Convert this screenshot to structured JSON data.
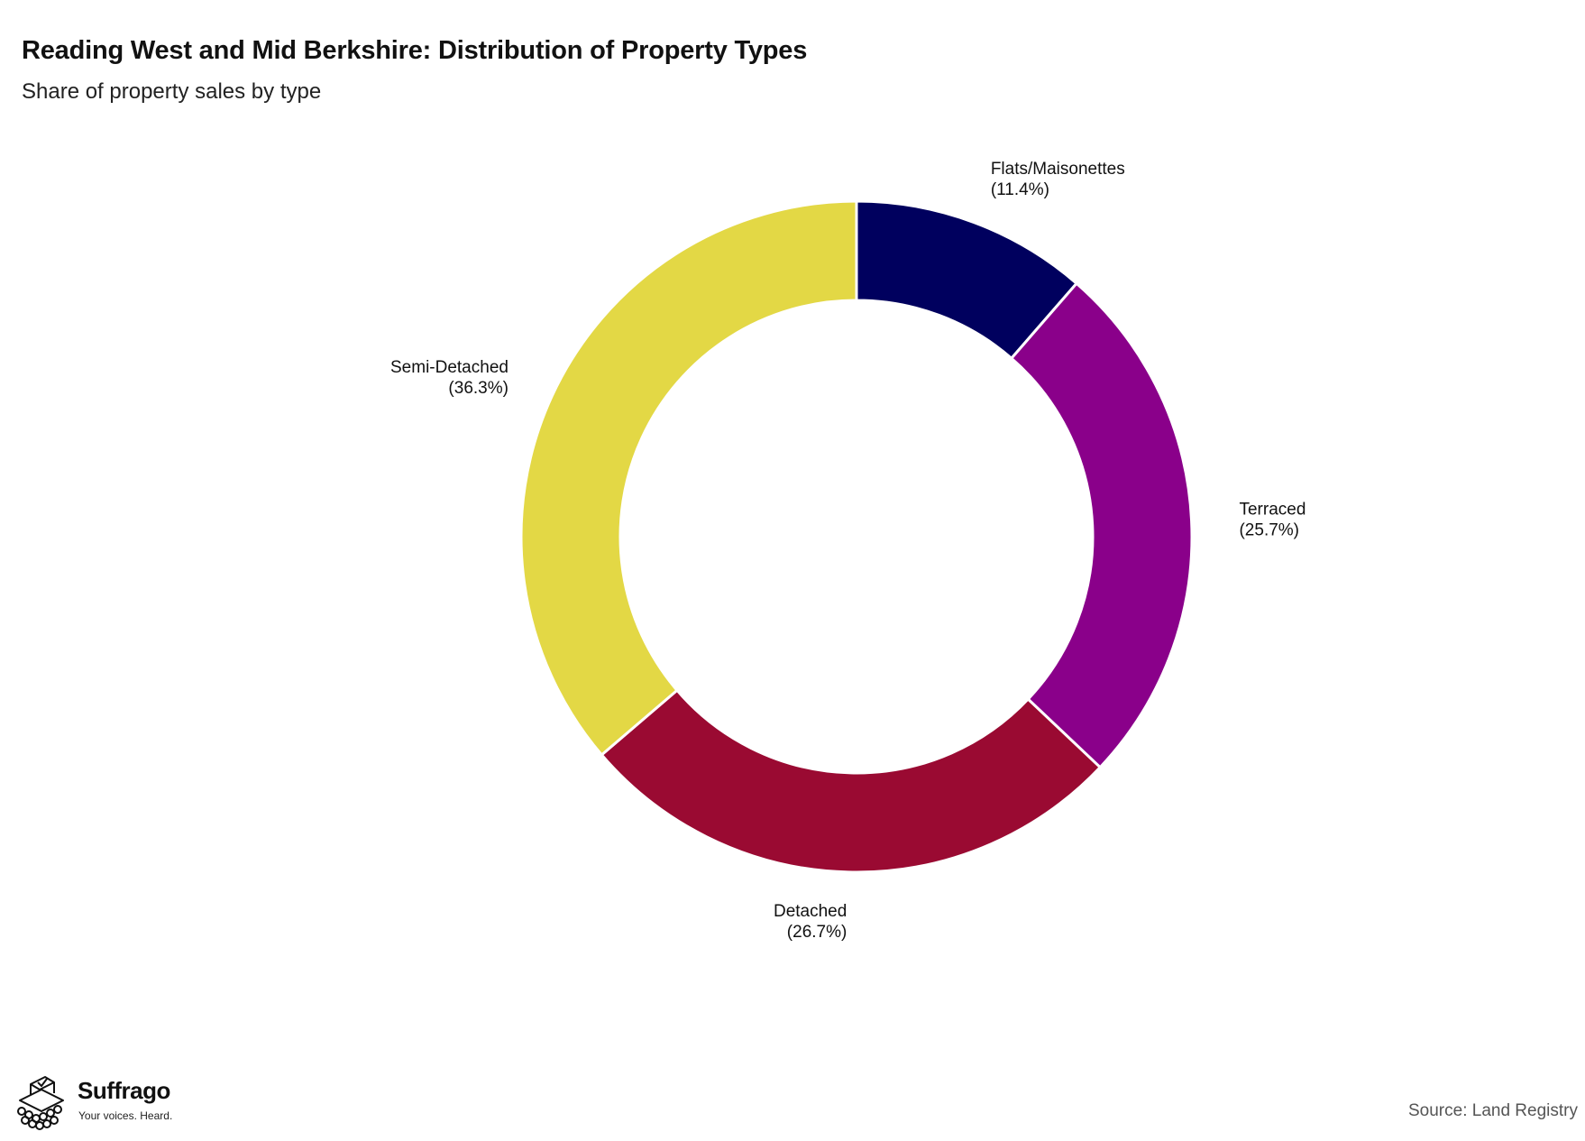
{
  "header": {
    "title": "Reading West and Mid Berkshire: Distribution of Property Types",
    "subtitle": "Share of property sales by type"
  },
  "chart_data": {
    "type": "pie",
    "style": "donut",
    "title": "Reading West and Mid Berkshire: Distribution of Property Types",
    "subtitle": "Share of property sales by type",
    "categories": [
      "Flats/Maisonettes",
      "Terraced",
      "Detached",
      "Semi-Detached"
    ],
    "values": [
      11.4,
      25.7,
      26.7,
      36.3
    ],
    "labels": [
      "(11.4%)",
      "(25.7%)",
      "(26.7%)",
      "(36.3%)"
    ],
    "colors": [
      "#00005e",
      "#8a008a",
      "#9a0a32",
      "#e3d845"
    ],
    "start_angle": "12 o'clock",
    "direction": "clockwise"
  },
  "footer": {
    "brand_name": "Suffrago",
    "brand_tagline": "Your voices. Heard.",
    "source": "Source: Land Registry"
  }
}
